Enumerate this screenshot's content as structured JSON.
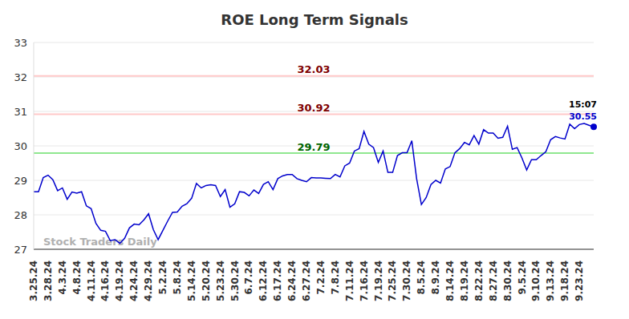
{
  "chart_data": {
    "type": "line",
    "title": "ROE Long Term Signals",
    "watermark": "Stock Traders Daily",
    "annotation": "15:07",
    "color": "#0000cc",
    "grid": true,
    "ylim": [
      27,
      33
    ],
    "yticks": [
      27,
      28,
      29,
      30,
      31,
      32,
      33
    ],
    "reference_lines": [
      {
        "value": 32.03,
        "color": "#ffc8c8",
        "label_color": "#800000"
      },
      {
        "value": 30.92,
        "color": "#ffc8c8",
        "label_color": "#800000"
      },
      {
        "value": 29.79,
        "color": "#90e890",
        "label_color": "#006400"
      }
    ],
    "categories": [
      "3.25.24",
      null,
      null,
      "3.28.24",
      null,
      null,
      "4.3.24",
      null,
      null,
      "4.8.24",
      null,
      null,
      "4.11.24",
      null,
      null,
      "4.16.24",
      null,
      null,
      "4.19.24",
      null,
      null,
      "4.24.24",
      null,
      null,
      "4.29.24",
      null,
      null,
      "5.2.24",
      null,
      null,
      "5.8.24",
      null,
      null,
      "5.14.24",
      null,
      null,
      "5.20.24",
      null,
      null,
      "5.23.24",
      null,
      null,
      "5.30.24",
      null,
      null,
      "6.7.24",
      null,
      null,
      "6.12.24",
      null,
      null,
      "6.17.24",
      null,
      null,
      "6.24.24",
      null,
      null,
      "6.27.24",
      null,
      null,
      "7.2.24",
      null,
      null,
      "7.8.24",
      null,
      null,
      "7.11.24",
      null,
      null,
      "7.16.24",
      null,
      null,
      "7.19.24",
      null,
      null,
      "7.25.24",
      null,
      null,
      "7.30.24",
      null,
      null,
      "8.5.24",
      null,
      null,
      "8.9.24",
      null,
      null,
      "8.14.24",
      null,
      null,
      "8.19.24",
      null,
      null,
      "8.22.24",
      null,
      null,
      "8.27.24",
      null,
      null,
      "8.30.24",
      null,
      null,
      "9.5.24",
      null,
      null,
      "9.10.24",
      null,
      null,
      "9.13.24",
      null,
      null,
      "9.18.24",
      null,
      null,
      "9.23.24",
      null,
      null,
      null
    ],
    "values": [
      28.67,
      28.67,
      29.08,
      29.15,
      29.02,
      28.7,
      28.78,
      28.45,
      28.66,
      28.63,
      28.67,
      28.26,
      28.18,
      27.75,
      27.55,
      27.52,
      27.25,
      27.28,
      27.17,
      27.32,
      27.62,
      27.73,
      27.71,
      27.85,
      28.03,
      27.57,
      27.28,
      27.55,
      27.82,
      28.07,
      28.08,
      28.25,
      28.32,
      28.48,
      28.91,
      28.78,
      28.85,
      28.87,
      28.85,
      28.53,
      28.73,
      28.22,
      28.32,
      28.67,
      28.65,
      28.55,
      28.72,
      28.62,
      28.88,
      28.96,
      28.73,
      29.05,
      29.13,
      29.17,
      29.17,
      29.05,
      29.0,
      28.96,
      29.08,
      29.07,
      29.07,
      29.06,
      29.05,
      29.17,
      29.1,
      29.42,
      29.5,
      29.85,
      29.92,
      30.42,
      30.05,
      29.95,
      29.52,
      29.85,
      29.23,
      29.23,
      29.72,
      29.8,
      29.8,
      30.15,
      29.05,
      28.3,
      28.5,
      28.88,
      29.0,
      28.92,
      29.33,
      29.4,
      29.8,
      29.92,
      30.1,
      30.03,
      30.3,
      30.05,
      30.47,
      30.37,
      30.37,
      30.22,
      30.25,
      30.57,
      29.9,
      29.95,
      29.65,
      29.3,
      29.6,
      29.6,
      29.72,
      29.83,
      30.18,
      30.27,
      30.23,
      30.2,
      30.63,
      30.5,
      30.62,
      30.65,
      30.6,
      30.55
    ]
  }
}
